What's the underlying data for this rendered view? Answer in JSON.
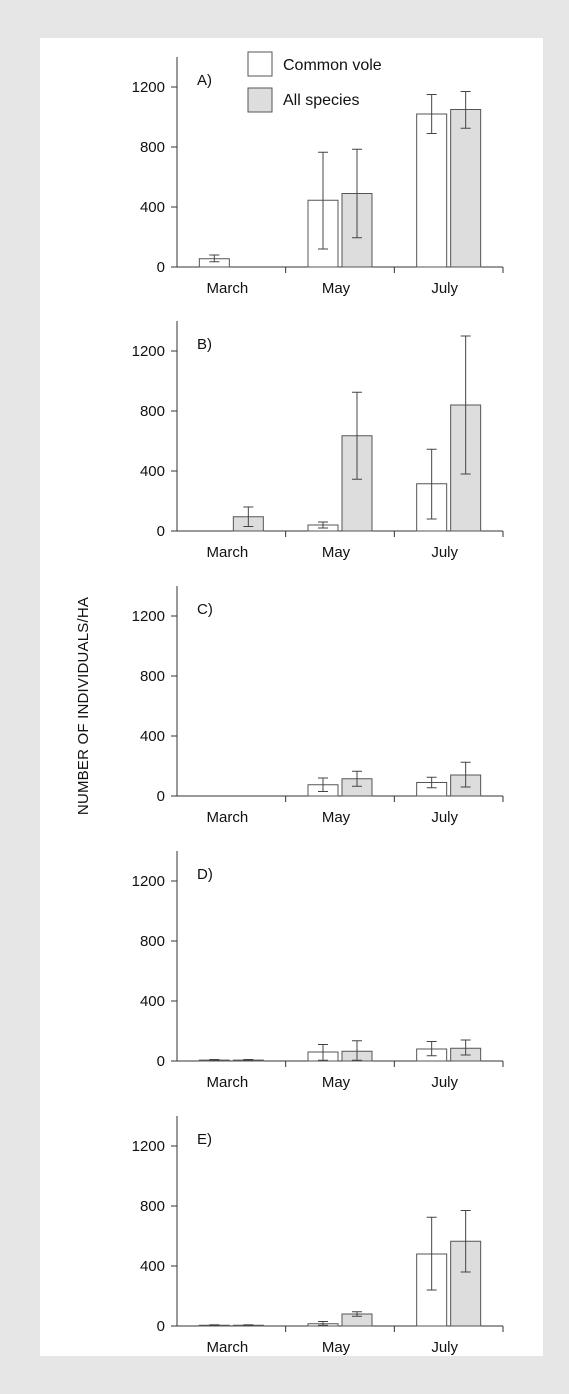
{
  "colors": {
    "common_vole": "#ffffff",
    "all_species": "#dddddd",
    "stroke": "#555555"
  },
  "chart_data": {
    "type": "bar",
    "ylabel": "NUMBER OF INDIVIDUALS/HA",
    "categories": [
      "March",
      "May",
      "July"
    ],
    "ylim": [
      0,
      1400
    ],
    "yticks": [
      0,
      400,
      800,
      1200
    ],
    "legend": {
      "placement": "top-center",
      "entries": [
        "Common vole",
        "All species"
      ]
    },
    "series_names": [
      "Common vole",
      "All species"
    ],
    "panels": [
      {
        "letter": "A)",
        "common_vole": [
          55,
          445,
          1020
        ],
        "common_vole_err": [
          [
            35,
            80
          ],
          [
            120,
            765
          ],
          [
            890,
            1150
          ]
        ],
        "all_species": [
          0,
          490,
          1050
        ],
        "all_species_err": [
          null,
          [
            195,
            785
          ],
          [
            925,
            1170
          ]
        ]
      },
      {
        "letter": "B)",
        "common_vole": [
          0,
          40,
          315
        ],
        "common_vole_err": [
          null,
          [
            20,
            60
          ],
          [
            80,
            545
          ]
        ],
        "all_species": [
          95,
          635,
          840
        ],
        "all_species_err": [
          [
            30,
            160
          ],
          [
            345,
            925
          ],
          [
            380,
            1300
          ]
        ]
      },
      {
        "letter": "C)",
        "common_vole": [
          0,
          75,
          90
        ],
        "common_vole_err": [
          null,
          [
            30,
            120
          ],
          [
            55,
            125
          ]
        ],
        "all_species": [
          0,
          115,
          140
        ],
        "all_species_err": [
          null,
          [
            65,
            165
          ],
          [
            60,
            225
          ]
        ]
      },
      {
        "letter": "D)",
        "common_vole": [
          6,
          60,
          80
        ],
        "common_vole_err": [
          [
            2,
            10
          ],
          [
            5,
            110
          ],
          [
            35,
            130
          ]
        ],
        "all_species": [
          6,
          65,
          85
        ],
        "all_species_err": [
          [
            2,
            10
          ],
          [
            5,
            135
          ],
          [
            40,
            140
          ]
        ]
      },
      {
        "letter": "E)",
        "common_vole": [
          5,
          15,
          480
        ],
        "common_vole_err": [
          [
            2,
            8
          ],
          [
            5,
            30
          ],
          [
            240,
            725
          ]
        ],
        "all_species": [
          5,
          80,
          565
        ],
        "all_species_err": [
          [
            2,
            8
          ],
          [
            65,
            95
          ],
          [
            360,
            770
          ]
        ]
      }
    ]
  }
}
